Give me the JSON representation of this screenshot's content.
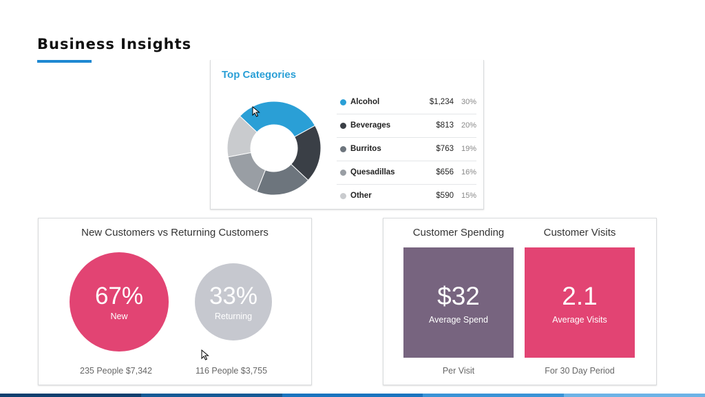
{
  "header": {
    "title": "Business Insights"
  },
  "colors": {
    "accent": "#1e88d2",
    "category_title": "#2a9fd6",
    "new_pink": "#e24473",
    "returning_gray": "#c6c8cf",
    "spend_purple": "#77647f",
    "visits_pink": "#e24473"
  },
  "top_categories": {
    "title": "Top Categories",
    "items": [
      {
        "name": "Alcohol",
        "amount": "$1,234",
        "percent": "30%",
        "share": 30,
        "color": "#2a9fd6"
      },
      {
        "name": "Beverages",
        "amount": "$813",
        "percent": "20%",
        "share": 20,
        "color": "#3a3f46"
      },
      {
        "name": "Burritos",
        "amount": "$763",
        "percent": "19%",
        "share": 19,
        "color": "#6d757d"
      },
      {
        "name": "Quesadillas",
        "amount": "$656",
        "percent": "16%",
        "share": 16,
        "color": "#999ea4"
      },
      {
        "name": "Other",
        "amount": "$590",
        "percent": "15%",
        "share": 15,
        "color": "#c9cbce"
      }
    ]
  },
  "customers": {
    "title": "New Customers vs Returning Customers",
    "new": {
      "percent": "67%",
      "label": "New",
      "footer": "235 People $7,342"
    },
    "returning": {
      "percent": "33%",
      "label": "Returning",
      "footer": "116 People $3,755"
    }
  },
  "spending": {
    "title": "Customer Spending",
    "value": "$32",
    "label": "Average Spend",
    "footer": "Per Visit"
  },
  "visits": {
    "title": "Customer Visits",
    "value": "2.1",
    "label": "Average Visits",
    "footer": "For 30 Day Period"
  },
  "footer_bar_colors": [
    "#0f3f6e",
    "#155a96",
    "#1b74bf",
    "#3a93d6",
    "#6db3e6"
  ]
}
